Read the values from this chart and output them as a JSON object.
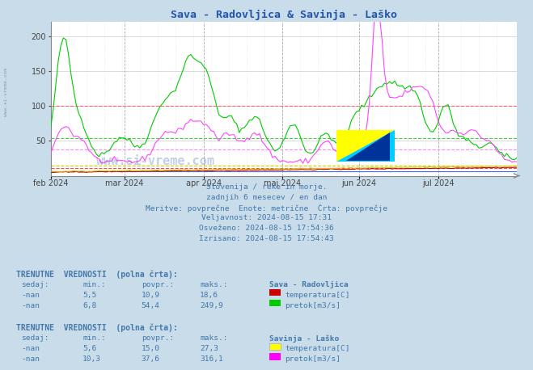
{
  "title": "Sava - Radovljica & Savinja - Laško",
  "title_color": "#2255aa",
  "fig_bg_color": "#c8dcea",
  "plot_bg_color": "#ffffff",
  "ylim": [
    0,
    220
  ],
  "yticks": [
    50,
    100,
    150,
    200
  ],
  "x_labels": [
    "feb 2024",
    "mar 2024",
    "apr 2024",
    "maj 2024",
    "jun 2024",
    "jul 2024"
  ],
  "subtitle_lines": [
    "Slovenija / reke in morje.",
    "zadnjih 6 mesecev / en dan",
    "Meritve: povprečne  Enote: metrične  Črta: povprečje",
    "Veljavnost: 2024-08-15 17:31",
    "Osveženo: 2024-08-15 17:54:36",
    "Izrisano: 2024-08-15 17:54:43"
  ],
  "table1_header": "TRENUTNE  VREDNOSTI  (polna črta):",
  "table2_header": "TRENUTNE  VREDNOSTI  (polna črta):",
  "t1_station": "Sava - Radovljica",
  "t2_station": "Savinja - Laško",
  "cols_header": [
    "sedaj:",
    "min.:",
    "povpr.:",
    "maks.:"
  ],
  "t1r1": [
    "-nan",
    "5,5",
    "10,9",
    "18,6"
  ],
  "t1r1_label": "temperatura[C]",
  "t1r1_color": "#cc0000",
  "t1r2": [
    "-nan",
    "6,8",
    "54,4",
    "249,9"
  ],
  "t1r2_label": "pretok[m3/s]",
  "t1r2_color": "#00cc00",
  "t2r1": [
    "-nan",
    "5,6",
    "15,0",
    "27,3"
  ],
  "t2r1_label": "temperatura[C]",
  "t2r1_color": "#ffff00",
  "t2r2": [
    "-nan",
    "10,3",
    "37,6",
    "316,1"
  ],
  "t2r2_label": "pretok[m3/s]",
  "t2r2_color": "#ff00ff",
  "hline_red_dashed": 100,
  "hline_green_dashed": 54.4,
  "hline_pink_dashed": 37.6,
  "hline_red2_dashed": 10.9,
  "hline_yellow_dashed": 15.0,
  "hline_blue_solid": 6.0,
  "grid_color": "#cccccc",
  "line_color_green": "#00cc00",
  "line_color_magenta": "#ff44ff",
  "line_color_red": "#cc0000",
  "line_color_yellow": "#cccc00",
  "text_color": "#4477aa",
  "watermark_color": "#1144aa",
  "sitext_color": "#8899bb"
}
